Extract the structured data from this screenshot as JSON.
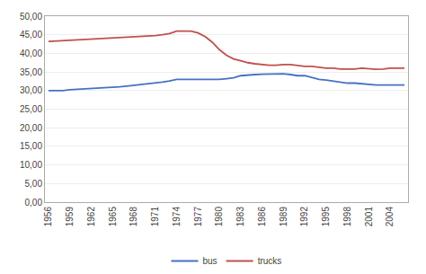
{
  "chart_data": {
    "type": "line",
    "x": [
      1956,
      1957,
      1958,
      1959,
      1960,
      1961,
      1962,
      1963,
      1964,
      1965,
      1966,
      1967,
      1968,
      1969,
      1970,
      1971,
      1972,
      1973,
      1974,
      1975,
      1976,
      1977,
      1978,
      1979,
      1980,
      1981,
      1982,
      1983,
      1984,
      1985,
      1986,
      1987,
      1988,
      1989,
      1990,
      1991,
      1992,
      1993,
      1994,
      1995,
      1996,
      1997,
      1998,
      1999,
      2000,
      2001,
      2002,
      2003,
      2004,
      2005,
      2006
    ],
    "series": [
      {
        "name": "bus",
        "color": "#4472C4",
        "values": [
          30.0,
          30.0,
          30.0,
          30.2,
          30.3,
          30.4,
          30.5,
          30.6,
          30.7,
          30.8,
          31.0,
          31.2,
          31.4,
          31.6,
          31.8,
          32.0,
          32.3,
          32.6,
          33.0,
          33.0,
          33.0,
          33.0,
          33.0,
          33.0,
          33.0,
          33.2,
          33.4,
          34.0,
          34.2,
          34.3,
          34.4,
          34.4,
          34.5,
          34.5,
          34.3,
          34.0,
          34.0,
          33.5,
          33.0,
          32.8,
          32.5,
          32.2,
          32.0,
          32.0,
          31.8,
          31.7,
          31.5,
          31.5,
          31.5,
          31.5,
          31.5
        ]
      },
      {
        "name": "trucks",
        "color": "#C0504D",
        "values": [
          43.2,
          43.3,
          43.5,
          43.6,
          43.7,
          43.8,
          43.9,
          44.0,
          44.1,
          44.2,
          44.3,
          44.4,
          44.5,
          44.6,
          44.7,
          44.8,
          45.0,
          45.3,
          46.0,
          46.0,
          46.0,
          45.5,
          44.5,
          43.0,
          41.0,
          39.5,
          38.5,
          38.0,
          37.5,
          37.2,
          37.0,
          36.8,
          36.8,
          37.0,
          37.0,
          36.8,
          36.5,
          36.5,
          36.3,
          36.0,
          36.0,
          35.8,
          35.8,
          35.8,
          36.0,
          35.8,
          35.7,
          35.8,
          36.0,
          36.0,
          36.0
        ]
      }
    ],
    "xlim": [
      1955.5,
      2006.5
    ],
    "xticks": [
      1956,
      1959,
      1962,
      1965,
      1968,
      1971,
      1974,
      1977,
      1980,
      1983,
      1986,
      1989,
      1992,
      1995,
      1998,
      2001,
      2004
    ],
    "ylim": [
      0,
      50
    ],
    "yticks": [
      {
        "value": 0,
        "label": "0,00"
      },
      {
        "value": 5,
        "label": "5,00"
      },
      {
        "value": 10,
        "label": "10,00"
      },
      {
        "value": 15,
        "label": "15,00"
      },
      {
        "value": 20,
        "label": "20,00"
      },
      {
        "value": 25,
        "label": "25,00"
      },
      {
        "value": 30,
        "label": "30,00"
      },
      {
        "value": 35,
        "label": "35,00"
      },
      {
        "value": 40,
        "label": "40,00"
      },
      {
        "value": 45,
        "label": "45,00"
      },
      {
        "value": 50,
        "label": "50,00"
      }
    ],
    "grid": true,
    "legend": "bottom"
  }
}
